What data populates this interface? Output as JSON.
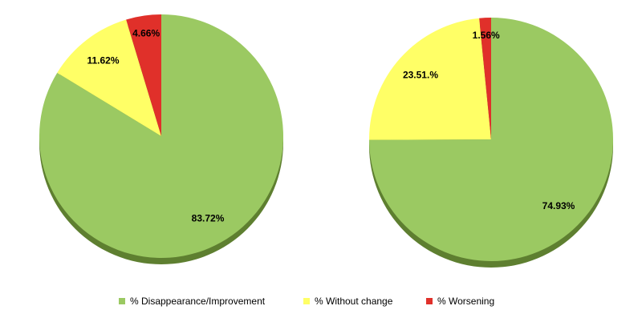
{
  "chart_data": [
    {
      "type": "pie",
      "categories": [
        "% Disappearance/Improvement",
        "% Without change",
        "% Worsening"
      ],
      "values": [
        83.72,
        11.62,
        4.66
      ],
      "value_labels": [
        "83.72%",
        "11.62%",
        "4.66%"
      ],
      "colors": [
        "#9bc962",
        "#ffff66",
        "#e0302a"
      ]
    },
    {
      "type": "pie",
      "values": [
        74.93,
        23.51,
        1.56
      ],
      "value_labels": [
        "74.93%",
        "23.51.%",
        "1.56%"
      ],
      "colors": [
        "#9bc962",
        "#ffff66",
        "#e0302a"
      ]
    }
  ]
}
